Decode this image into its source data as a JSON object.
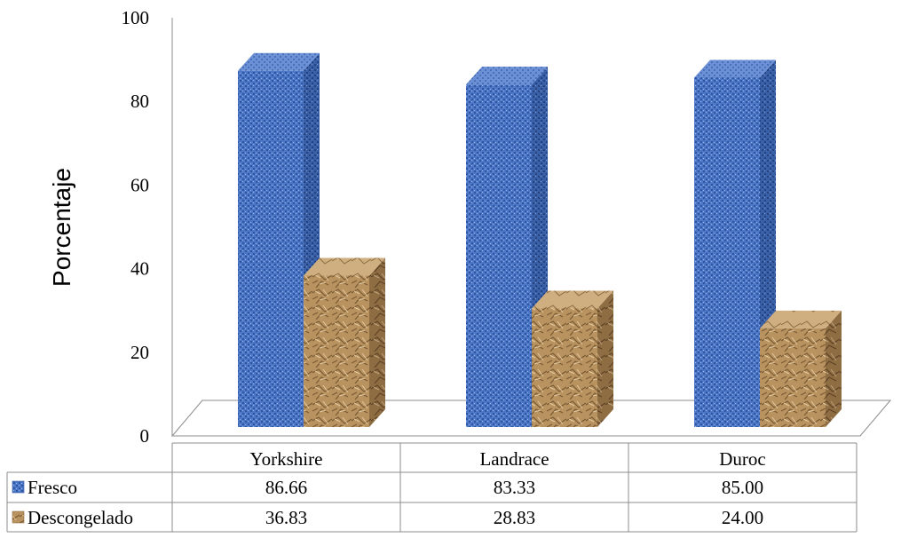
{
  "chart_data": {
    "type": "bar",
    "title": "",
    "xlabel": "",
    "ylabel": "Porcentaje",
    "ylim": [
      0,
      100
    ],
    "yticks": [
      0,
      20,
      40,
      60,
      80,
      100
    ],
    "categories": [
      "Yorkshire",
      "Landrace",
      "Duroc"
    ],
    "series": [
      {
        "name": "Fresco",
        "values": [
          86.66,
          83.33,
          85.0
        ],
        "value_labels": [
          "86.66",
          "83.33",
          "85.00"
        ],
        "color": "#4a74c2"
      },
      {
        "name": "Descongelado",
        "values": [
          36.83,
          28.83,
          24.0
        ],
        "value_labels": [
          "36.83",
          "28.83",
          "24.00"
        ],
        "color": "#b08a5a"
      }
    ],
    "legend": "data-table",
    "grid": false,
    "style": "3d"
  }
}
